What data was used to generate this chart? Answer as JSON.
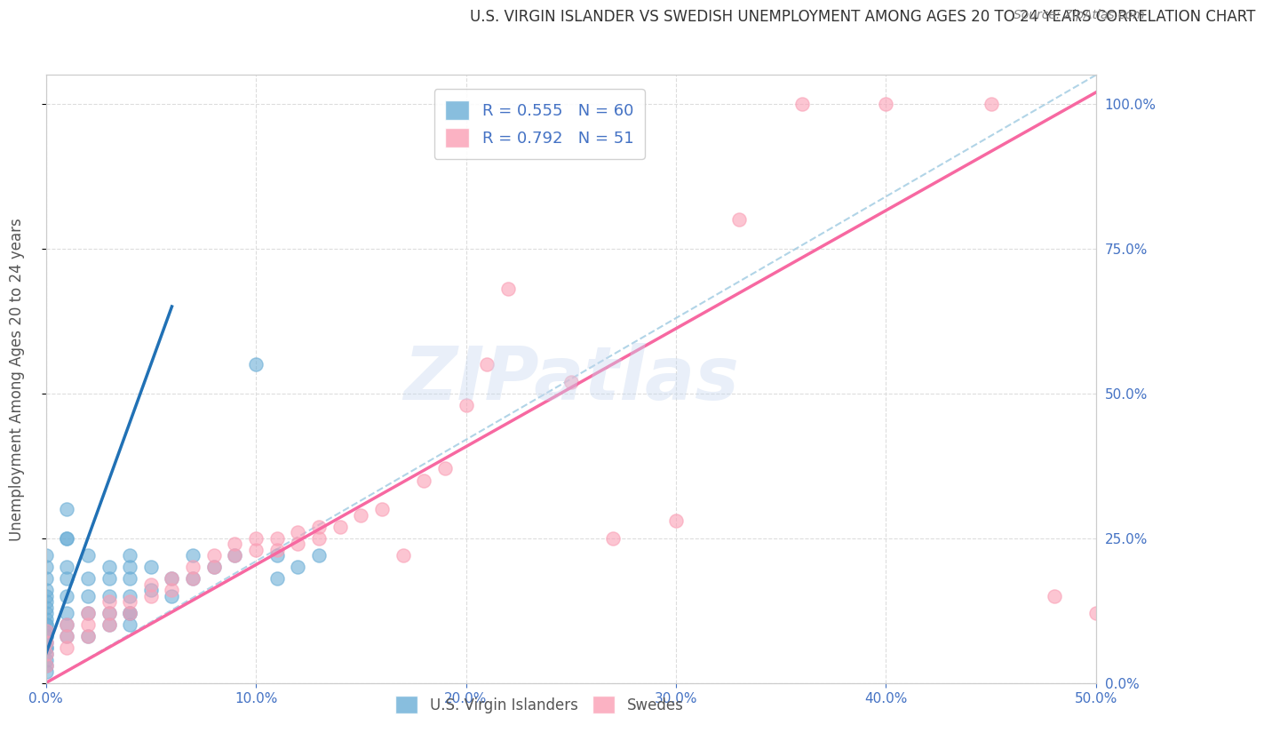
{
  "title": "U.S. VIRGIN ISLANDER VS SWEDISH UNEMPLOYMENT AMONG AGES 20 TO 24 YEARS CORRELATION CHART",
  "source": "Source: ZipAtlas.com",
  "xlabel_bottom": "",
  "ylabel": "Unemployment Among Ages 20 to 24 years",
  "xmin": 0.0,
  "xmax": 0.5,
  "ymin": 0.0,
  "ymax": 1.05,
  "right_yticks": [
    0.0,
    0.25,
    0.5,
    0.75,
    1.0
  ],
  "right_yticklabels": [
    "0.0%",
    "25.0%",
    "50.0%",
    "75.0%",
    "100.0%"
  ],
  "bottom_xticks": [
    0.0,
    0.1,
    0.2,
    0.3,
    0.4,
    0.5
  ],
  "bottom_xticklabels": [
    "0.0%",
    "10.0%",
    "20.0%",
    "30.0%",
    "40.0%",
    "50.0%"
  ],
  "legend_labels": [
    "U.S. Virgin Islanders",
    "Swedes"
  ],
  "blue_color": "#6baed6",
  "pink_color": "#fa9fb5",
  "blue_line_color": "#2171b5",
  "pink_line_color": "#f768a1",
  "dashed_line_color": "#9ecae1",
  "r_blue": 0.555,
  "n_blue": 60,
  "r_pink": 0.792,
  "n_pink": 51,
  "watermark": "ZIPatlas",
  "title_color": "#333333",
  "axis_label_color": "#555555",
  "right_tick_color": "#4472c4",
  "bottom_tick_color": "#4472c4",
  "grid_color": "#dddddd",
  "blue_scatter_x": [
    0.0,
    0.0,
    0.0,
    0.0,
    0.0,
    0.0,
    0.0,
    0.0,
    0.0,
    0.0,
    0.0,
    0.0,
    0.0,
    0.0,
    0.0,
    0.0,
    0.0,
    0.0,
    0.01,
    0.01,
    0.01,
    0.01,
    0.01,
    0.01,
    0.01,
    0.02,
    0.02,
    0.02,
    0.02,
    0.03,
    0.03,
    0.03,
    0.03,
    0.04,
    0.04,
    0.04,
    0.04,
    0.04,
    0.04,
    0.05,
    0.05,
    0.06,
    0.06,
    0.07,
    0.07,
    0.08,
    0.09,
    0.1,
    0.11,
    0.11,
    0.12,
    0.13,
    0.02,
    0.03,
    0.04,
    0.01,
    0.01,
    0.0,
    0.0,
    0.0
  ],
  "blue_scatter_y": [
    0.05,
    0.08,
    0.1,
    0.12,
    0.14,
    0.16,
    0.18,
    0.2,
    0.22,
    0.15,
    0.13,
    0.11,
    0.09,
    0.07,
    0.06,
    0.04,
    0.03,
    0.02,
    0.25,
    0.2,
    0.18,
    0.15,
    0.12,
    0.1,
    0.08,
    0.22,
    0.18,
    0.15,
    0.12,
    0.2,
    0.18,
    0.15,
    0.12,
    0.22,
    0.2,
    0.18,
    0.15,
    0.12,
    0.1,
    0.2,
    0.16,
    0.18,
    0.15,
    0.22,
    0.18,
    0.2,
    0.22,
    0.55,
    0.22,
    0.18,
    0.2,
    0.22,
    0.08,
    0.1,
    0.12,
    0.3,
    0.25,
    0.06,
    0.08,
    0.1
  ],
  "pink_scatter_x": [
    0.0,
    0.0,
    0.0,
    0.0,
    0.01,
    0.01,
    0.01,
    0.02,
    0.02,
    0.02,
    0.03,
    0.03,
    0.03,
    0.04,
    0.04,
    0.05,
    0.05,
    0.06,
    0.06,
    0.07,
    0.07,
    0.08,
    0.08,
    0.09,
    0.09,
    0.1,
    0.1,
    0.11,
    0.11,
    0.12,
    0.12,
    0.13,
    0.13,
    0.14,
    0.15,
    0.16,
    0.17,
    0.18,
    0.19,
    0.2,
    0.21,
    0.22,
    0.25,
    0.27,
    0.3,
    0.33,
    0.36,
    0.4,
    0.45,
    0.48,
    0.5
  ],
  "pink_scatter_y": [
    0.03,
    0.05,
    0.07,
    0.09,
    0.06,
    0.08,
    0.1,
    0.08,
    0.1,
    0.12,
    0.1,
    0.12,
    0.14,
    0.12,
    0.14,
    0.15,
    0.17,
    0.16,
    0.18,
    0.18,
    0.2,
    0.2,
    0.22,
    0.22,
    0.24,
    0.23,
    0.25,
    0.23,
    0.25,
    0.24,
    0.26,
    0.25,
    0.27,
    0.27,
    0.29,
    0.3,
    0.22,
    0.35,
    0.37,
    0.48,
    0.55,
    0.68,
    0.52,
    0.25,
    0.28,
    0.8,
    1.0,
    1.0,
    1.0,
    0.15,
    0.12
  ]
}
